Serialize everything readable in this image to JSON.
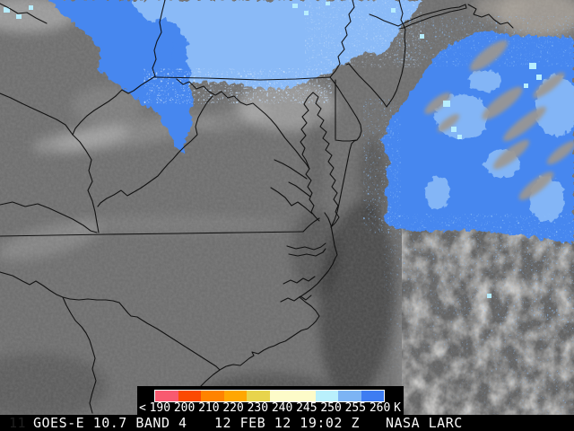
{
  "status_bar": {
    "faint_left": "11",
    "instrument": "GOES-E 10.7 BAND 4",
    "timestamp": "12 FEB 12 19:02 Z",
    "source": "NASA LARC"
  },
  "colorbar": {
    "tick_labels": [
      "<",
      "190",
      "200",
      "210",
      "220",
      "230",
      "240",
      "245",
      "250",
      "255",
      "260",
      "K"
    ],
    "segment_colors": [
      "#f85a70",
      "#fb4a02",
      "#ff8300",
      "#ffa702",
      "#e8d44c",
      "#fdfbc9",
      "#fdfbc9",
      "#b9f0fc",
      "#7db4f4",
      "#3e7df2"
    ],
    "panel_bg": "#000000",
    "label_color": "#ffffff",
    "outline_color": "#ffffff"
  },
  "map": {
    "land_gray": "#6f6f6f",
    "cloud_blue": "#4687ef",
    "cloud_light_blue": "#8abaf7",
    "cloud_cyan": "#b7edfe",
    "warm_cloud_gray": "#9d978f",
    "border_color": "#0b0b0b"
  }
}
